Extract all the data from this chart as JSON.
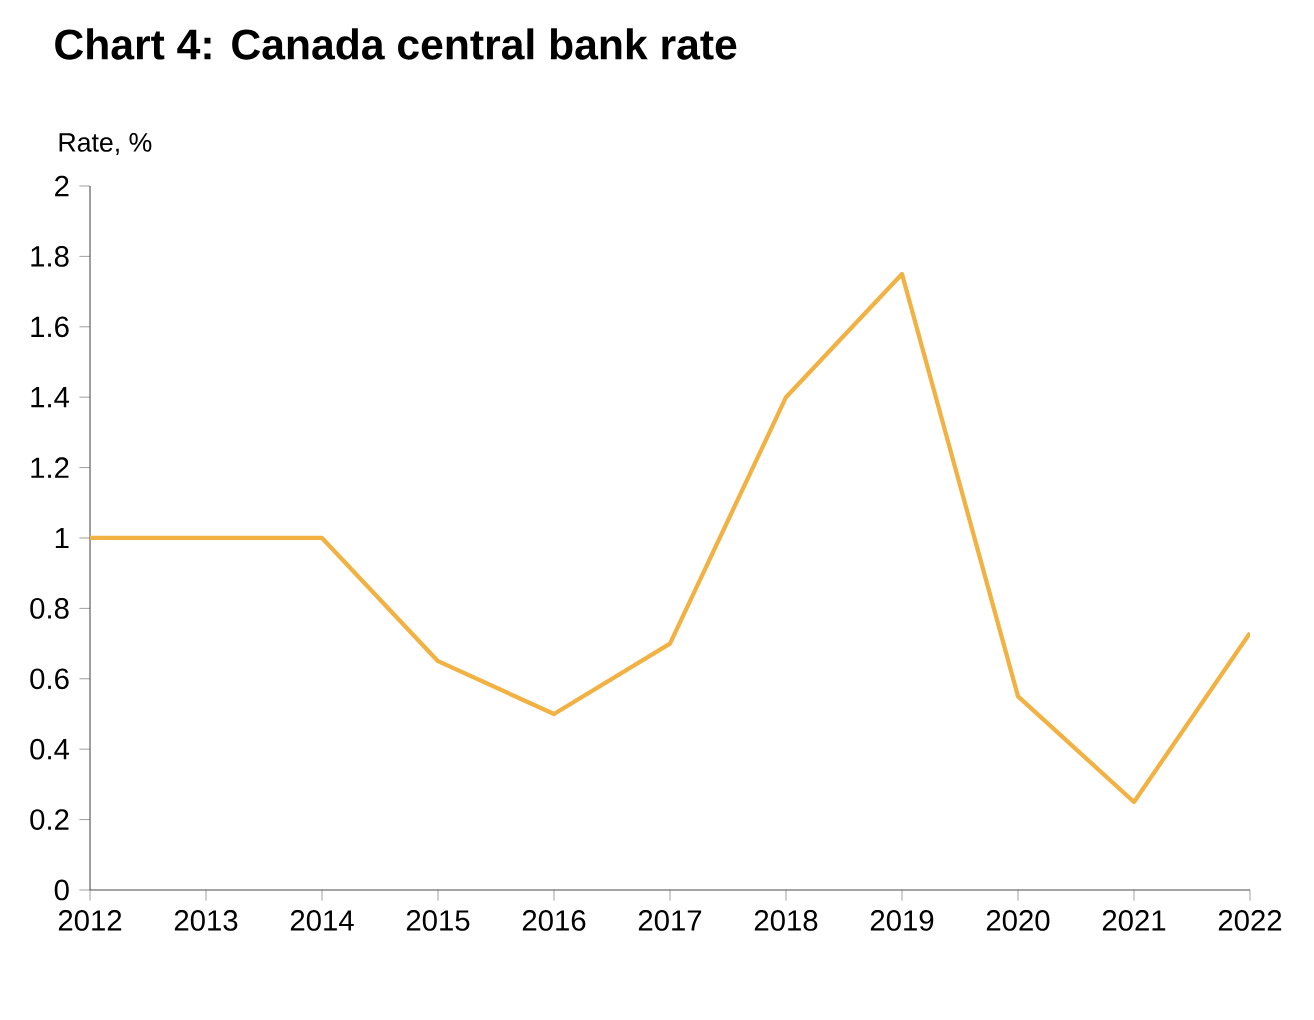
{
  "chart_data": {
    "type": "line",
    "title": "Chart 4: Canada central bank rate",
    "ylabel": "Rate, %",
    "categories": [
      "2012",
      "2013",
      "2014",
      "2015",
      "2016",
      "2017",
      "2018",
      "2019",
      "2020",
      "2021",
      "2022"
    ],
    "values": [
      1.0,
      1.0,
      1.0,
      0.65,
      0.5,
      0.7,
      1.4,
      1.75,
      0.55,
      0.25,
      0.73
    ],
    "color": "#f2b143",
    "ylim": [
      0,
      2
    ],
    "yticks": [
      0,
      0.2,
      0.4,
      0.6,
      0.8,
      1,
      1.2,
      1.4,
      1.6,
      1.8,
      2
    ],
    "grid": false,
    "marker": "none",
    "line_style": "solid"
  }
}
